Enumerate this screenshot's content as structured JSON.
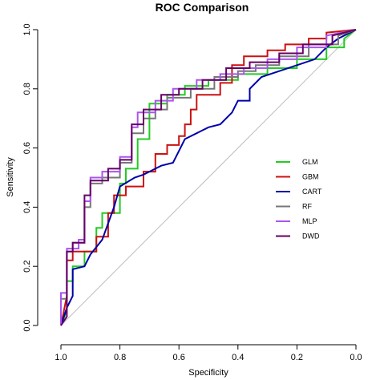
{
  "chart_data": {
    "type": "line",
    "title": "ROC Comparison",
    "xlabel": "Specificity",
    "ylabel": "Sensitivity",
    "xlim": [
      1.0,
      0.0
    ],
    "ylim": [
      0.0,
      1.0
    ],
    "x_reversed": true,
    "grid": false,
    "legend_position": "right",
    "x_ticks": [
      "1.0",
      "0.8",
      "0.6",
      "0.4",
      "0.2",
      "0.0"
    ],
    "y_ticks": [
      "0.0",
      "0.2",
      "0.4",
      "0.6",
      "0.8",
      "1.0"
    ],
    "reference_line": {
      "from": [
        1.0,
        0.0
      ],
      "to": [
        0.0,
        1.0
      ],
      "color": "#bebebe"
    },
    "series": [
      {
        "name": "GLM",
        "color": "#22cc22",
        "points": [
          [
            1.0,
            0.0
          ],
          [
            0.98,
            0.05
          ],
          [
            0.98,
            0.15
          ],
          [
            0.96,
            0.15
          ],
          [
            0.96,
            0.2
          ],
          [
            0.92,
            0.2
          ],
          [
            0.92,
            0.25
          ],
          [
            0.88,
            0.25
          ],
          [
            0.88,
            0.33
          ],
          [
            0.86,
            0.33
          ],
          [
            0.86,
            0.38
          ],
          [
            0.8,
            0.38
          ],
          [
            0.8,
            0.48
          ],
          [
            0.78,
            0.48
          ],
          [
            0.78,
            0.53
          ],
          [
            0.74,
            0.53
          ],
          [
            0.74,
            0.63
          ],
          [
            0.7,
            0.63
          ],
          [
            0.7,
            0.75
          ],
          [
            0.64,
            0.75
          ],
          [
            0.64,
            0.78
          ],
          [
            0.58,
            0.78
          ],
          [
            0.58,
            0.81
          ],
          [
            0.5,
            0.81
          ],
          [
            0.5,
            0.83
          ],
          [
            0.4,
            0.83
          ],
          [
            0.4,
            0.85
          ],
          [
            0.3,
            0.85
          ],
          [
            0.3,
            0.87
          ],
          [
            0.2,
            0.87
          ],
          [
            0.2,
            0.9
          ],
          [
            0.1,
            0.9
          ],
          [
            0.1,
            0.94
          ],
          [
            0.04,
            0.94
          ],
          [
            0.04,
            0.97
          ],
          [
            0.0,
            1.0
          ]
        ]
      },
      {
        "name": "GBM",
        "color": "#cc1111",
        "points": [
          [
            1.0,
            0.0
          ],
          [
            0.98,
            0.1
          ],
          [
            0.98,
            0.22
          ],
          [
            0.96,
            0.22
          ],
          [
            0.96,
            0.25
          ],
          [
            0.88,
            0.25
          ],
          [
            0.88,
            0.3
          ],
          [
            0.84,
            0.3
          ],
          [
            0.84,
            0.38
          ],
          [
            0.82,
            0.38
          ],
          [
            0.82,
            0.44
          ],
          [
            0.78,
            0.44
          ],
          [
            0.78,
            0.47
          ],
          [
            0.72,
            0.47
          ],
          [
            0.72,
            0.52
          ],
          [
            0.68,
            0.52
          ],
          [
            0.68,
            0.58
          ],
          [
            0.64,
            0.58
          ],
          [
            0.64,
            0.61
          ],
          [
            0.6,
            0.61
          ],
          [
            0.6,
            0.64
          ],
          [
            0.58,
            0.64
          ],
          [
            0.58,
            0.68
          ],
          [
            0.56,
            0.68
          ],
          [
            0.56,
            0.73
          ],
          [
            0.54,
            0.73
          ],
          [
            0.54,
            0.78
          ],
          [
            0.46,
            0.78
          ],
          [
            0.46,
            0.82
          ],
          [
            0.42,
            0.82
          ],
          [
            0.42,
            0.88
          ],
          [
            0.38,
            0.88
          ],
          [
            0.38,
            0.91
          ],
          [
            0.3,
            0.91
          ],
          [
            0.3,
            0.93
          ],
          [
            0.24,
            0.93
          ],
          [
            0.24,
            0.95
          ],
          [
            0.16,
            0.95
          ],
          [
            0.16,
            0.97
          ],
          [
            0.1,
            0.97
          ],
          [
            0.1,
            0.99
          ],
          [
            0.0,
            1.0
          ]
        ]
      },
      {
        "name": "CART",
        "color": "#0000aa",
        "points": [
          [
            1.0,
            0.0
          ],
          [
            0.98,
            0.06
          ],
          [
            0.96,
            0.1
          ],
          [
            0.96,
            0.19
          ],
          [
            0.92,
            0.2
          ],
          [
            0.9,
            0.24
          ],
          [
            0.86,
            0.29
          ],
          [
            0.82,
            0.4
          ],
          [
            0.8,
            0.47
          ],
          [
            0.75,
            0.5
          ],
          [
            0.72,
            0.51
          ],
          [
            0.7,
            0.52
          ],
          [
            0.66,
            0.54
          ],
          [
            0.62,
            0.55
          ],
          [
            0.6,
            0.59
          ],
          [
            0.58,
            0.63
          ],
          [
            0.54,
            0.65
          ],
          [
            0.5,
            0.67
          ],
          [
            0.46,
            0.68
          ],
          [
            0.42,
            0.72
          ],
          [
            0.4,
            0.76
          ],
          [
            0.36,
            0.76
          ],
          [
            0.36,
            0.8
          ],
          [
            0.32,
            0.84
          ],
          [
            0.26,
            0.86
          ],
          [
            0.2,
            0.88
          ],
          [
            0.14,
            0.9
          ],
          [
            0.1,
            0.94
          ],
          [
            0.06,
            0.97
          ],
          [
            0.0,
            1.0
          ]
        ]
      },
      {
        "name": "RF",
        "color": "#777777",
        "points": [
          [
            1.0,
            0.0
          ],
          [
            1.0,
            0.09
          ],
          [
            0.98,
            0.09
          ],
          [
            0.98,
            0.25
          ],
          [
            0.96,
            0.25
          ],
          [
            0.96,
            0.28
          ],
          [
            0.92,
            0.28
          ],
          [
            0.92,
            0.4
          ],
          [
            0.9,
            0.4
          ],
          [
            0.9,
            0.48
          ],
          [
            0.86,
            0.48
          ],
          [
            0.86,
            0.5
          ],
          [
            0.8,
            0.5
          ],
          [
            0.8,
            0.55
          ],
          [
            0.76,
            0.55
          ],
          [
            0.76,
            0.65
          ],
          [
            0.72,
            0.65
          ],
          [
            0.72,
            0.7
          ],
          [
            0.68,
            0.7
          ],
          [
            0.68,
            0.73
          ],
          [
            0.64,
            0.73
          ],
          [
            0.64,
            0.77
          ],
          [
            0.56,
            0.77
          ],
          [
            0.56,
            0.8
          ],
          [
            0.48,
            0.8
          ],
          [
            0.48,
            0.84
          ],
          [
            0.4,
            0.84
          ],
          [
            0.4,
            0.86
          ],
          [
            0.34,
            0.86
          ],
          [
            0.34,
            0.88
          ],
          [
            0.26,
            0.88
          ],
          [
            0.26,
            0.91
          ],
          [
            0.16,
            0.91
          ],
          [
            0.16,
            0.95
          ],
          [
            0.06,
            0.95
          ],
          [
            0.06,
            0.98
          ],
          [
            0.0,
            1.0
          ]
        ]
      },
      {
        "name": "MLP",
        "color": "#aa55ee",
        "points": [
          [
            1.0,
            0.0
          ],
          [
            1.0,
            0.11
          ],
          [
            0.98,
            0.11
          ],
          [
            0.98,
            0.26
          ],
          [
            0.94,
            0.26
          ],
          [
            0.94,
            0.29
          ],
          [
            0.92,
            0.29
          ],
          [
            0.92,
            0.42
          ],
          [
            0.9,
            0.42
          ],
          [
            0.9,
            0.5
          ],
          [
            0.86,
            0.5
          ],
          [
            0.86,
            0.52
          ],
          [
            0.8,
            0.52
          ],
          [
            0.8,
            0.57
          ],
          [
            0.76,
            0.57
          ],
          [
            0.76,
            0.67
          ],
          [
            0.74,
            0.67
          ],
          [
            0.74,
            0.72
          ],
          [
            0.68,
            0.72
          ],
          [
            0.68,
            0.76
          ],
          [
            0.62,
            0.76
          ],
          [
            0.62,
            0.8
          ],
          [
            0.54,
            0.8
          ],
          [
            0.54,
            0.83
          ],
          [
            0.46,
            0.83
          ],
          [
            0.46,
            0.85
          ],
          [
            0.38,
            0.85
          ],
          [
            0.38,
            0.87
          ],
          [
            0.3,
            0.87
          ],
          [
            0.3,
            0.9
          ],
          [
            0.2,
            0.9
          ],
          [
            0.2,
            0.94
          ],
          [
            0.1,
            0.94
          ],
          [
            0.1,
            0.98
          ],
          [
            0.0,
            1.0
          ]
        ]
      },
      {
        "name": "DWD",
        "color": "#660066",
        "points": [
          [
            1.0,
            0.0
          ],
          [
            0.98,
            0.03
          ],
          [
            0.98,
            0.25
          ],
          [
            0.96,
            0.25
          ],
          [
            0.96,
            0.28
          ],
          [
            0.92,
            0.28
          ],
          [
            0.92,
            0.44
          ],
          [
            0.9,
            0.44
          ],
          [
            0.9,
            0.49
          ],
          [
            0.84,
            0.49
          ],
          [
            0.84,
            0.53
          ],
          [
            0.8,
            0.53
          ],
          [
            0.8,
            0.56
          ],
          [
            0.76,
            0.56
          ],
          [
            0.76,
            0.68
          ],
          [
            0.72,
            0.68
          ],
          [
            0.72,
            0.73
          ],
          [
            0.66,
            0.73
          ],
          [
            0.66,
            0.78
          ],
          [
            0.6,
            0.78
          ],
          [
            0.6,
            0.8
          ],
          [
            0.52,
            0.8
          ],
          [
            0.52,
            0.83
          ],
          [
            0.44,
            0.83
          ],
          [
            0.44,
            0.87
          ],
          [
            0.36,
            0.87
          ],
          [
            0.36,
            0.89
          ],
          [
            0.26,
            0.89
          ],
          [
            0.26,
            0.92
          ],
          [
            0.18,
            0.92
          ],
          [
            0.18,
            0.95
          ],
          [
            0.08,
            0.95
          ],
          [
            0.08,
            0.98
          ],
          [
            0.0,
            1.0
          ]
        ]
      }
    ]
  }
}
